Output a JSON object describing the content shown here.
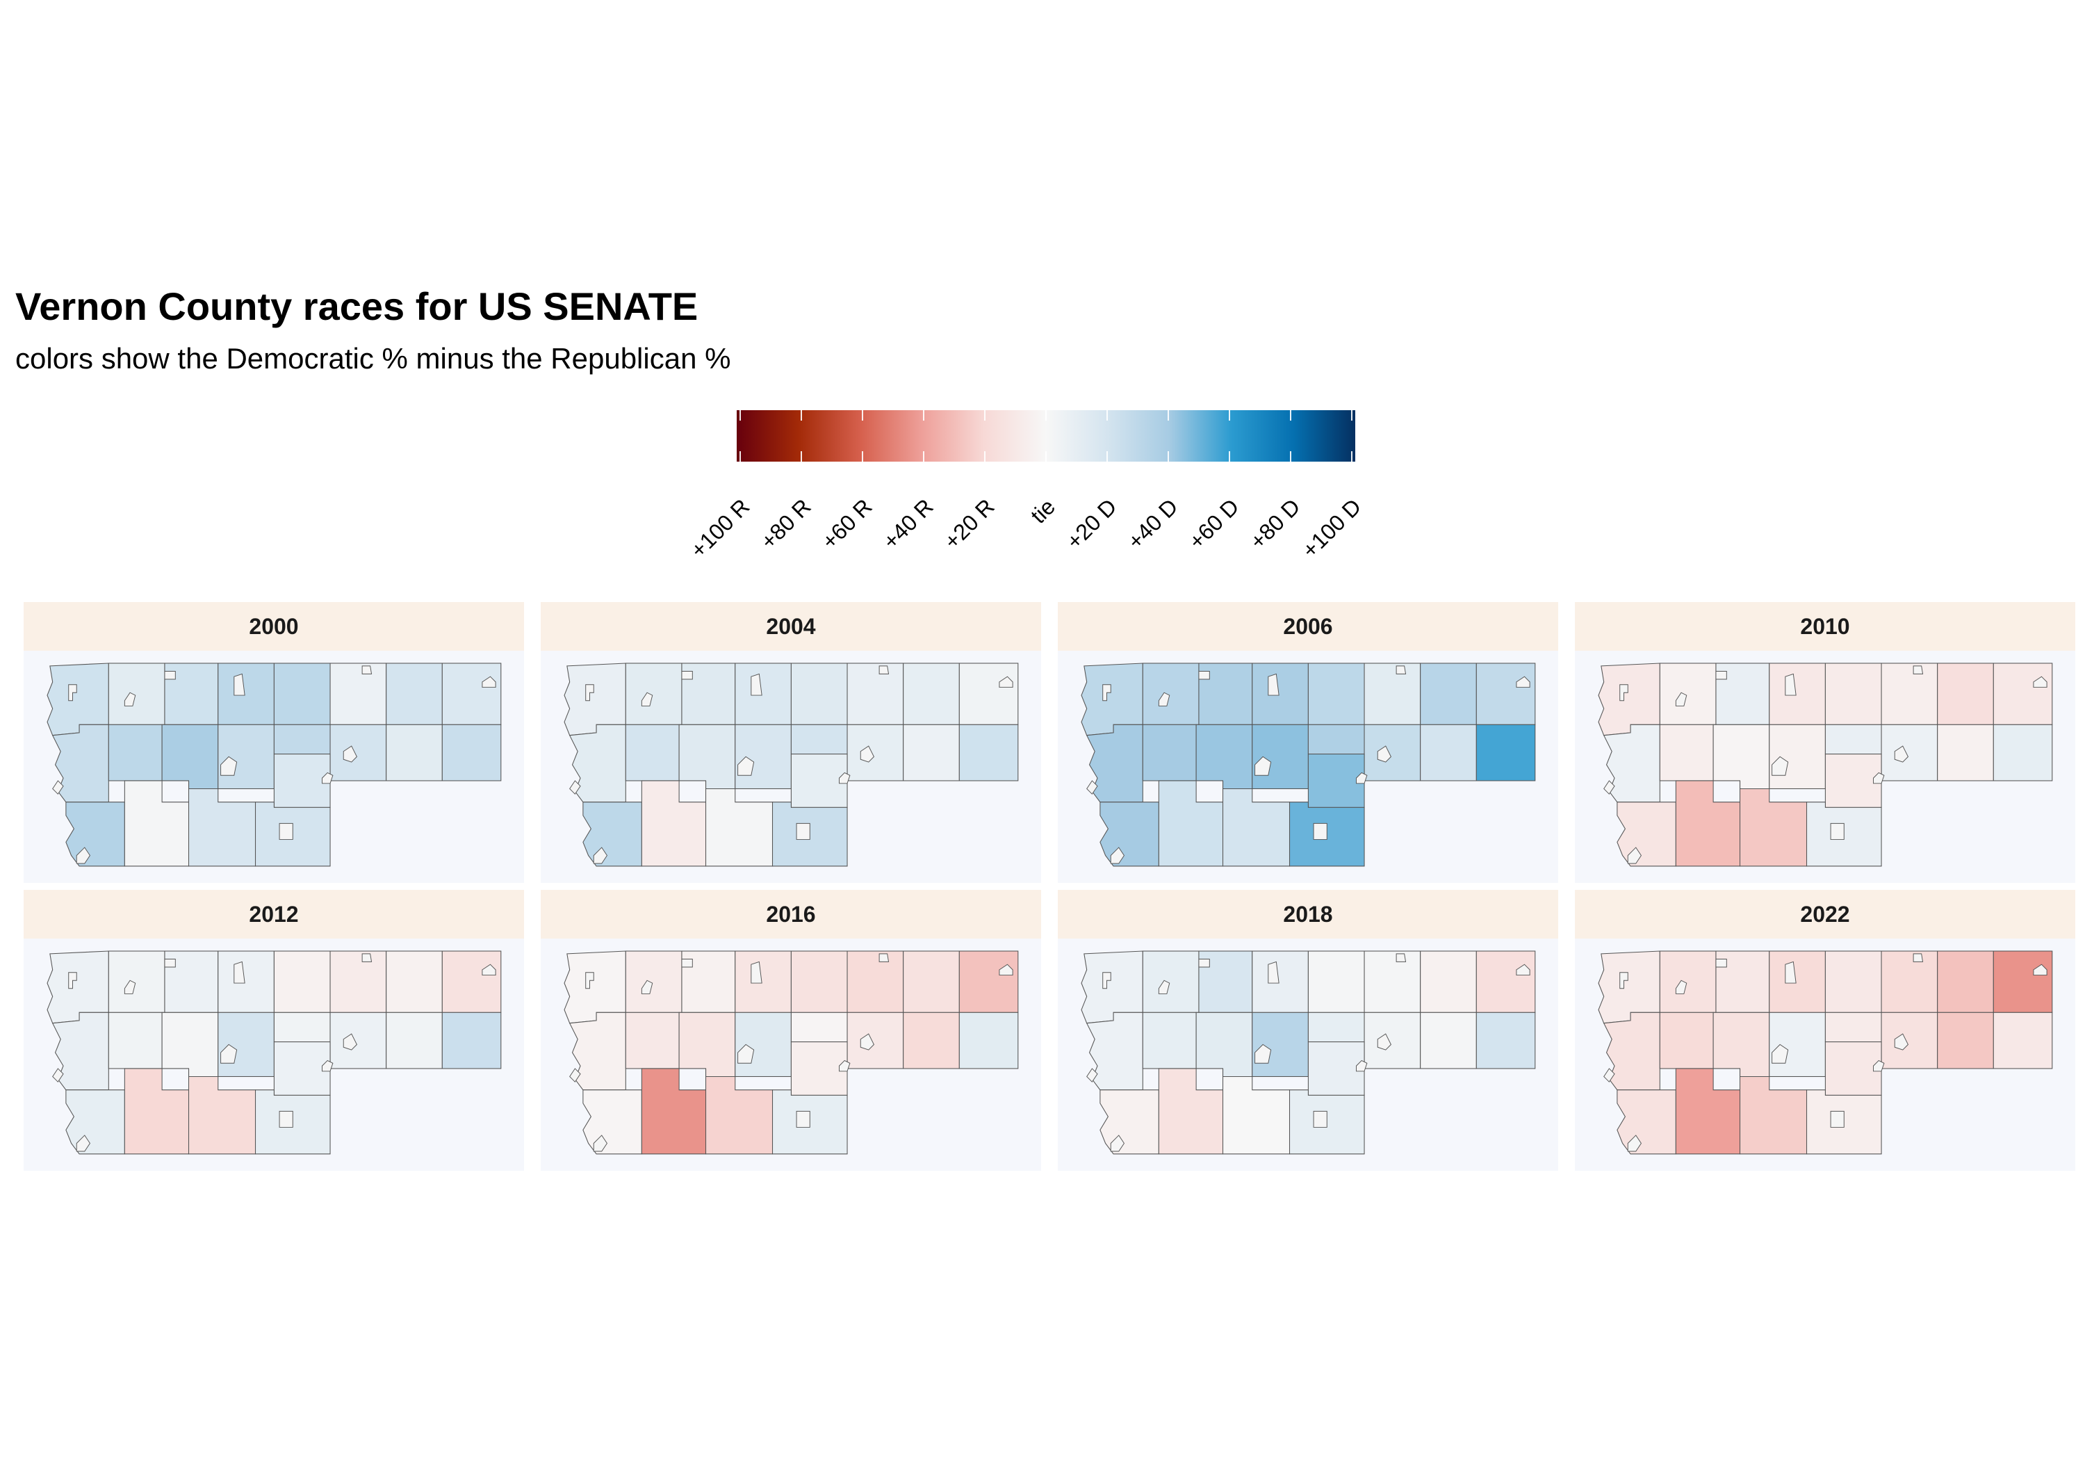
{
  "title": "Vernon County races for US SENATE",
  "subtitle": "colors show the Democratic % minus the Republican %",
  "legend": {
    "labels": [
      "+100 R",
      "+80 R",
      "+60 R",
      "+40 R",
      "+20 R",
      "tie",
      "+20 D",
      "+40 D",
      "+60 D",
      "+80 D",
      "+100 D"
    ],
    "colors": [
      "#67000d",
      "#a32a08",
      "#d6604d",
      "#eea09a",
      "#f7d9d6",
      "#f7f7f7",
      "#d4e4ef",
      "#a6cbe3",
      "#2b9bd0",
      "#0570b0",
      "#053061"
    ]
  },
  "years": [
    "2000",
    "2004",
    "2006",
    "2010",
    "2012",
    "2016",
    "2018",
    "2022"
  ],
  "chart_data": {
    "type": "choropleth",
    "units": "Democratic % minus Republican %",
    "scale_range": [
      -100,
      100
    ],
    "regions": [
      "r1",
      "r2",
      "r3",
      "r4",
      "r5",
      "r6",
      "r7",
      "r8",
      "r9",
      "r10",
      "r11",
      "r12",
      "r13",
      "r14",
      "r15",
      "r16",
      "r17",
      "r18",
      "r19",
      "r20",
      "r21"
    ],
    "margins": {
      "2000": [
        22,
        12,
        22,
        30,
        30,
        6,
        20,
        16,
        25,
        30,
        38,
        25,
        28,
        20,
        12,
        25,
        34,
        2,
        18,
        16,
        20
      ],
      "2004": [
        8,
        12,
        14,
        16,
        14,
        8,
        10,
        4,
        12,
        20,
        14,
        18,
        20,
        10,
        6,
        22,
        30,
        -8,
        2,
        10,
        25
      ],
      "2006": [
        30,
        32,
        36,
        38,
        30,
        12,
        32,
        28,
        40,
        40,
        42,
        44,
        36,
        26,
        20,
        56,
        40,
        22,
        20,
        45,
        50
      ],
      "2010": [
        -10,
        -4,
        8,
        -10,
        -8,
        -6,
        -16,
        -10,
        6,
        -6,
        -2,
        -4,
        8,
        6,
        -4,
        10,
        -12,
        -30,
        -26,
        -8,
        8
      ],
      "2012": [
        6,
        4,
        6,
        6,
        -4,
        -8,
        -4,
        -14,
        8,
        4,
        2,
        20,
        4,
        6,
        4,
        24,
        10,
        -20,
        -18,
        6,
        10
      ],
      "2016": [
        -2,
        -8,
        -4,
        -12,
        -14,
        -18,
        -14,
        -28,
        -4,
        -10,
        -12,
        14,
        -2,
        -10,
        -18,
        12,
        -2,
        -44,
        -22,
        -6,
        10
      ],
      "2018": [
        6,
        10,
        18,
        8,
        2,
        2,
        -4,
        -16,
        6,
        10,
        12,
        32,
        10,
        4,
        2,
        20,
        -4,
        -14,
        0,
        8,
        10
      ],
      "2022": [
        -8,
        -14,
        -10,
        -18,
        -10,
        -18,
        -28,
        -44,
        -14,
        -18,
        -14,
        6,
        -8,
        -14,
        -26,
        -10,
        -14,
        -40,
        -24,
        -10,
        -6
      ]
    }
  }
}
